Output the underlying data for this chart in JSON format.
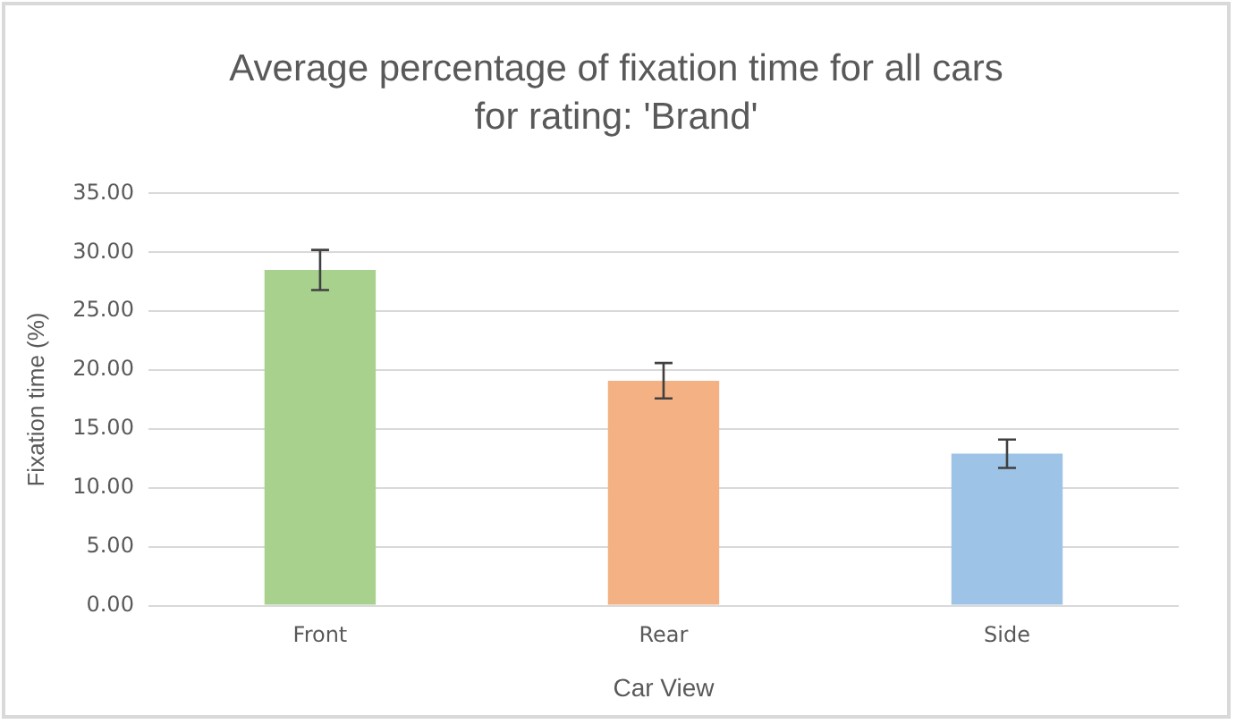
{
  "chart_data": {
    "type": "bar",
    "title": "Average percentage of fixation time for all cars for rating: 'Brand'",
    "xlabel": "Car View",
    "ylabel": "Fixation time (%)",
    "categories": [
      "Front",
      "Rear",
      "Side"
    ],
    "values": [
      28.5,
      19.1,
      12.9
    ],
    "errors": [
      1.7,
      1.5,
      1.2
    ],
    "colors": [
      "#a9d18e",
      "#f4b183",
      "#9dc3e6"
    ],
    "ylim": [
      0,
      35
    ],
    "yticks": [
      {
        "value": 0,
        "label": "0.00"
      },
      {
        "value": 5,
        "label": "5.00"
      },
      {
        "value": 10,
        "label": "10.00"
      },
      {
        "value": 15,
        "label": "15.00"
      },
      {
        "value": 20,
        "label": "20.00"
      },
      {
        "value": 25,
        "label": "25.00"
      },
      {
        "value": 30,
        "label": "30.00"
      },
      {
        "value": 35,
        "label": "35.00"
      }
    ],
    "grid": "y",
    "legend": false
  }
}
